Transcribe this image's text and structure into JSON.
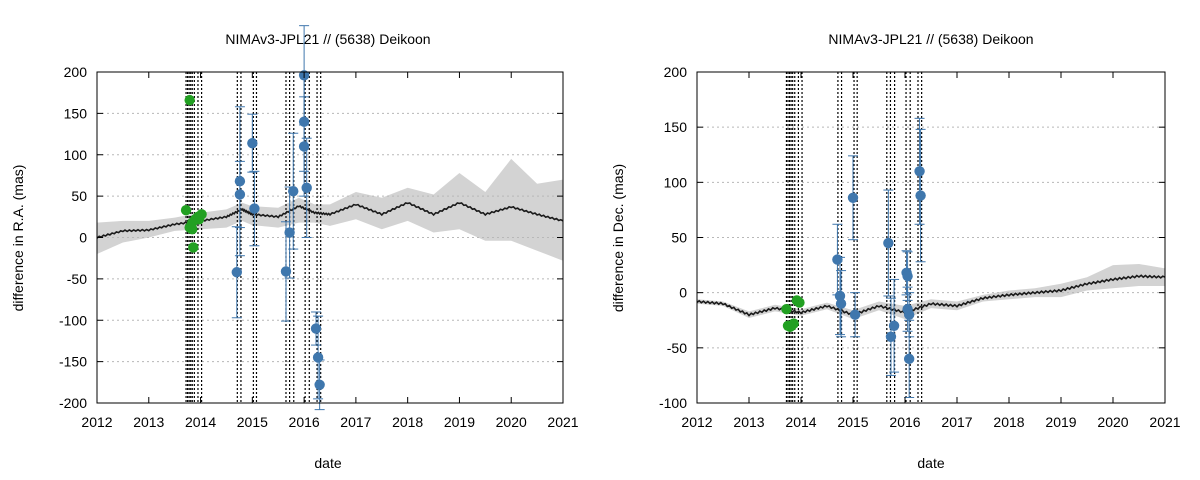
{
  "chart_data": [
    {
      "type": "scatter",
      "title": "NIMAv3-JPL21 // (5638) Deikoon",
      "xlabel": "date",
      "ylabel": "difference in R.A. (mas)",
      "xlim": [
        2012,
        2021
      ],
      "ylim": [
        -200,
        200
      ],
      "xticks": [
        2012,
        2013,
        2014,
        2015,
        2016,
        2017,
        2018,
        2019,
        2020,
        2021
      ],
      "yticks": [
        200,
        150,
        100,
        50,
        0,
        -50,
        -100,
        -150,
        -200
      ],
      "grid": "horizontal dotted",
      "dotted_epochs": [
        2013.72,
        2013.75,
        2013.78,
        2013.81,
        2013.84,
        2013.88,
        2013.95,
        2014.02,
        2014.71,
        2014.78,
        2015.02,
        2015.08,
        2015.65,
        2015.72,
        2015.8,
        2016.02,
        2016.1,
        2016.25,
        2016.32
      ],
      "prediction": {
        "name": "NIMAv3-JPL21",
        "color": "#1a1a1a",
        "band_color": "#d3d3d3",
        "x": [
          2012.0,
          2012.5,
          2013.0,
          2013.5,
          2014.0,
          2014.5,
          2014.8,
          2015.0,
          2015.5,
          2015.9,
          2016.2,
          2016.5,
          2017.0,
          2017.5,
          2018.0,
          2018.5,
          2019.0,
          2019.5,
          2020.0,
          2020.5,
          2021.0
        ],
        "y": [
          0,
          8,
          9,
          16,
          20,
          25,
          34,
          28,
          25,
          38,
          30,
          28,
          40,
          28,
          42,
          28,
          42,
          28,
          37,
          28,
          20
        ],
        "upper": [
          18,
          20,
          20,
          24,
          30,
          34,
          42,
          38,
          36,
          48,
          40,
          40,
          55,
          48,
          60,
          52,
          78,
          55,
          95,
          65,
          70
        ],
        "lower": [
          -20,
          -6,
          0,
          8,
          10,
          12,
          20,
          15,
          12,
          18,
          18,
          14,
          22,
          10,
          20,
          6,
          10,
          -4,
          -4,
          -16,
          -28
        ]
      },
      "series": [
        {
          "name": "green",
          "color": "#22a022",
          "x": [
            2013.79,
            2013.72,
            2013.79,
            2013.84,
            2013.84,
            2013.9,
            2013.95,
            2013.97,
            2014.02,
            2013.86
          ],
          "y": [
            166,
            33,
            12,
            10,
            18,
            22,
            25,
            22,
            28,
            -12
          ]
        },
        {
          "name": "blue",
          "color": "#3f77ad",
          "x": [
            2014.7,
            2014.76,
            2014.76,
            2015.0,
            2015.04,
            2015.65,
            2015.72,
            2015.79,
            2016.0,
            2016.0,
            2016.0,
            2016.05,
            2016.23,
            2016.27,
            2016.3
          ],
          "y": [
            -42,
            52,
            68,
            114,
            35,
            -41,
            6,
            56,
            196,
            140,
            110,
            60,
            -110,
            -145,
            -178
          ],
          "err": [
            55,
            40,
            90,
            35,
            45,
            60,
            55,
            70,
            60,
            60,
            60,
            60,
            20,
            50,
            30
          ]
        }
      ]
    },
    {
      "type": "scatter",
      "title": "NIMAv3-JPL21 // (5638) Deikoon",
      "xlabel": "date",
      "ylabel": "difference in Dec. (mas)",
      "xlim": [
        2012,
        2021
      ],
      "ylim": [
        -100,
        200
      ],
      "xticks": [
        2012,
        2013,
        2014,
        2015,
        2016,
        2017,
        2018,
        2019,
        2020,
        2021
      ],
      "yticks": [
        200,
        150,
        100,
        50,
        0,
        -50,
        -100
      ],
      "grid": "horizontal dotted",
      "dotted_epochs": [
        2013.72,
        2013.75,
        2013.78,
        2013.81,
        2013.84,
        2013.88,
        2013.95,
        2014.02,
        2014.71,
        2014.78,
        2015.02,
        2015.08,
        2015.65,
        2015.72,
        2015.8,
        2016.02,
        2016.1,
        2016.25,
        2016.32
      ],
      "prediction": {
        "name": "NIMAv3-JPL21",
        "color": "#1a1a1a",
        "band_color": "#d3d3d3",
        "x": [
          2012.0,
          2012.5,
          2013.0,
          2013.5,
          2014.0,
          2014.5,
          2015.0,
          2015.5,
          2016.0,
          2016.5,
          2017.0,
          2017.5,
          2018.0,
          2018.5,
          2019.0,
          2019.5,
          2020.0,
          2020.5,
          2021.0
        ],
        "y": [
          -8,
          -10,
          -20,
          -14,
          -18,
          -12,
          -20,
          -12,
          -18,
          -10,
          -12,
          -5,
          -2,
          0,
          2,
          8,
          12,
          15,
          14
        ],
        "upper": [
          -6,
          -8,
          -17,
          -11,
          -15,
          -9,
          -16,
          -8,
          -12,
          -6,
          -8,
          -2,
          2,
          4,
          8,
          14,
          25,
          26,
          22
        ],
        "lower": [
          -10,
          -12,
          -23,
          -17,
          -21,
          -15,
          -24,
          -16,
          -24,
          -14,
          -16,
          -8,
          -6,
          -4,
          -4,
          2,
          4,
          6,
          6
        ]
      },
      "series": [
        {
          "name": "green",
          "color": "#22a022",
          "x": [
            2013.72,
            2013.75,
            2013.79,
            2013.82,
            2013.86,
            2013.92,
            2013.97
          ],
          "y": [
            -15,
            -30,
            -31,
            -30,
            -28,
            -7,
            -9
          ]
        },
        {
          "name": "blue",
          "color": "#3f77ad",
          "x": [
            2014.7,
            2014.75,
            2014.77,
            2015.0,
            2015.04,
            2015.68,
            2015.73,
            2015.79,
            2016.03,
            2016.05,
            2016.05,
            2016.08,
            2016.08,
            2016.28,
            2016.3
          ],
          "y": [
            30,
            -3,
            -10,
            86,
            -20,
            45,
            -40,
            -30,
            18,
            15,
            -15,
            -20,
            -60,
            110,
            88
          ],
          "err": [
            32,
            35,
            30,
            38,
            20,
            48,
            35,
            42,
            20,
            22,
            20,
            20,
            35,
            48,
            60
          ]
        }
      ]
    }
  ]
}
